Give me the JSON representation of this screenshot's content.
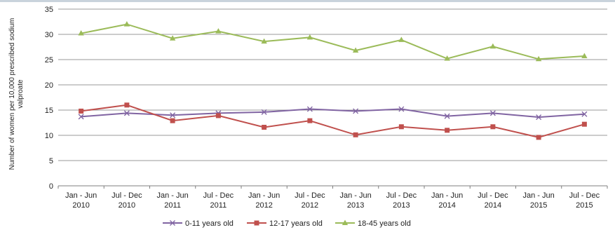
{
  "chart_data": {
    "type": "line",
    "title": "",
    "xlabel": "",
    "ylabel": "Number of women per 10,000 prescribed sodium valproate",
    "ylim": [
      0,
      35
    ],
    "yticks": [
      0,
      5,
      10,
      15,
      20,
      25,
      30,
      35
    ],
    "grid": true,
    "legend_position": "bottom",
    "categories": [
      [
        "Jan - Jun",
        "2010"
      ],
      [
        "Jul - Dec",
        "2010"
      ],
      [
        "Jan - Jun",
        "2011"
      ],
      [
        "Jul - Dec",
        "2011"
      ],
      [
        "Jan - Jun",
        "2012"
      ],
      [
        "Jul - Dec",
        "2012"
      ],
      [
        "Jan - Jun",
        "2013"
      ],
      [
        "Jul - Dec",
        "2013"
      ],
      [
        "Jan - Jun",
        "2014"
      ],
      [
        "Jul - Dec",
        "2014"
      ],
      [
        "Jan - Jun",
        "2015"
      ],
      [
        "Jul - Dec",
        "2015"
      ]
    ],
    "series": [
      {
        "name": "0-11 years old",
        "color": "#8064a2",
        "marker": "x",
        "values": [
          13.7,
          14.4,
          14.0,
          14.4,
          14.6,
          15.2,
          14.8,
          15.2,
          13.8,
          14.4,
          13.6,
          14.2
        ]
      },
      {
        "name": "12-17 years old",
        "color": "#c0504d",
        "marker": "square",
        "values": [
          14.8,
          16.0,
          12.9,
          13.9,
          11.6,
          12.9,
          10.1,
          11.7,
          11.0,
          11.7,
          9.6,
          12.2
        ]
      },
      {
        "name": "18-45 years old",
        "color": "#9bbb59",
        "marker": "triangle",
        "values": [
          30.2,
          32.0,
          29.2,
          30.6,
          28.6,
          29.4,
          26.8,
          28.9,
          25.2,
          27.6,
          25.1,
          25.7
        ]
      }
    ]
  }
}
